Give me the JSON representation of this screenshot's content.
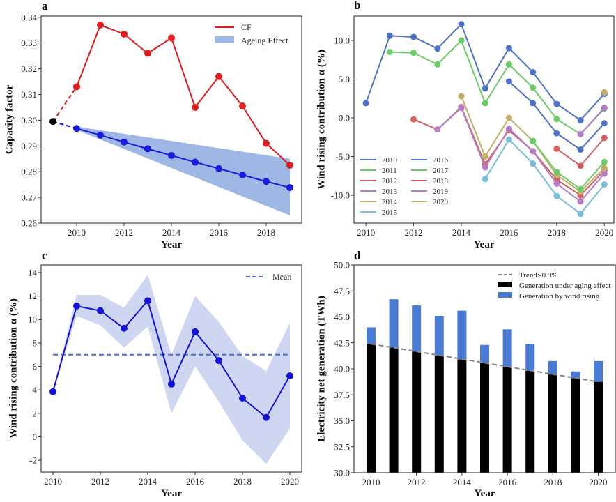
{
  "chart_data": [
    {
      "panel": "a",
      "type": "line",
      "xlabel": "Year",
      "ylabel": "Capacity factor",
      "xlim": [
        2008.5,
        2019.5
      ],
      "ylim": [
        0.26,
        0.3405
      ],
      "xticks": [
        2010,
        2012,
        2014,
        2016,
        2018
      ],
      "yticks": [
        "0.26",
        "0.27",
        "0.28",
        "0.29",
        "0.30",
        "0.31",
        "0.32",
        "0.33",
        "0.34"
      ],
      "x": [
        2009,
        2010,
        2011,
        2012,
        2013,
        2014,
        2015,
        2016,
        2017,
        2018,
        2019
      ],
      "series": [
        {
          "name": "CF",
          "color": "#e31a1c",
          "values": [
            0.2995,
            0.313,
            0.337,
            0.3335,
            0.326,
            0.332,
            0.305,
            0.317,
            0.3055,
            0.291,
            0.2825
          ]
        },
        {
          "name": "Ageing",
          "color": "#1a1ae0",
          "values": [
            0.2995,
            0.2968,
            0.2942,
            0.2915,
            0.2889,
            0.2863,
            0.2837,
            0.2812,
            0.2787,
            0.2762,
            0.2738
          ]
        }
      ],
      "band": {
        "name": "Ageing Effect",
        "color": "#7f9fdc",
        "x": [
          2010,
          2019
        ],
        "upper": [
          0.2975,
          0.285
        ],
        "lower": [
          0.2962,
          0.263
        ]
      },
      "legend": [
        "CF",
        "Ageing Effect"
      ],
      "legend_position": "top-right"
    },
    {
      "panel": "b",
      "type": "line",
      "xlabel": "Year",
      "ylabel": "Wind rising contribution α (%)",
      "xlim": [
        2009.5,
        2020.4
      ],
      "ylim": [
        -13.6,
        13.15
      ],
      "xticks": [
        2010,
        2012,
        2014,
        2016,
        2018,
        2020
      ],
      "yticks": [
        "-10.0",
        "-5.0",
        "0.0",
        "5.0",
        "10.0"
      ],
      "series": [
        {
          "name": "2010",
          "color": "#4c72c8",
          "x": [
            2010,
            2011,
            2012,
            2013,
            2014,
            2015,
            2016,
            2017,
            2018,
            2019,
            2020
          ],
          "values": [
            1.9,
            10.6,
            10.45,
            8.95,
            12.1,
            3.8,
            9.0,
            5.9,
            1.8,
            -0.3,
            3.1
          ]
        },
        {
          "name": "2011",
          "color": "#6acc65",
          "x": [
            2011,
            2012,
            2013,
            2014,
            2015,
            2016,
            2017,
            2018,
            2019,
            2020
          ],
          "values": [
            8.5,
            8.4,
            6.9,
            10.0,
            1.9,
            6.9,
            3.9,
            -0.15,
            -2.1,
            1.2
          ]
        },
        {
          "name": "2012",
          "color": "#d65f5f",
          "x": [
            2012,
            2013,
            2014,
            2015,
            2016,
            2017,
            2018,
            2019,
            2020
          ],
          "values": [
            -0.2,
            -1.5,
            1.4,
            -6.0,
            -1.6,
            -4.3,
            -8.0,
            -10.0,
            -6.8
          ]
        },
        {
          "name": "2013",
          "color": "#b47cc7",
          "x": [
            2013,
            2014,
            2015,
            2016,
            2017,
            2018,
            2019,
            2020
          ],
          "values": [
            -1.5,
            1.3,
            -6.4,
            -1.4,
            -4.3,
            -8.5,
            -10.8,
            -7.2
          ]
        },
        {
          "name": "2014",
          "color": "#c4ad66",
          "x": [
            2014,
            2015,
            2016,
            2017,
            2018,
            2019,
            2020
          ],
          "values": [
            2.8,
            -5.0,
            0.0,
            -3.0,
            -7.4,
            -9.5,
            -6.5
          ]
        },
        {
          "name": "2015",
          "color": "#77bedb",
          "x": [
            2015,
            2016,
            2017,
            2018,
            2019,
            2020
          ],
          "values": [
            -7.9,
            -2.8,
            -5.9,
            -10.1,
            -12.4,
            -8.6
          ]
        },
        {
          "name": "2016",
          "color": "#4c72c8",
          "x": [
            2016,
            2017,
            2018,
            2019,
            2020
          ],
          "values": [
            4.7,
            1.9,
            -2.0,
            -4.1,
            -0.7
          ]
        },
        {
          "name": "2017",
          "color": "#6acc65",
          "x": [
            2017,
            2018,
            2019,
            2020
          ],
          "values": [
            -3.0,
            -7.0,
            -9.2,
            -5.7
          ]
        },
        {
          "name": "2018",
          "color": "#d65f5f",
          "x": [
            2018,
            2019,
            2020
          ],
          "values": [
            -4.0,
            -6.2,
            -2.6
          ]
        },
        {
          "name": "2019",
          "color": "#b47cc7",
          "x": [
            2019,
            2020
          ],
          "values": [
            -2.1,
            1.3
          ]
        },
        {
          "name": "2020",
          "color": "#c4ad66",
          "x": [
            2020
          ],
          "values": [
            3.3
          ]
        }
      ],
      "legend_position": "lower-left"
    },
    {
      "panel": "c",
      "type": "line",
      "xlabel": "Year",
      "ylabel": "Wind rising contribution α (%)",
      "xlim": [
        2009.5,
        2020.5
      ],
      "ylim": [
        -3.0,
        14.65
      ],
      "xticks": [
        2010,
        2012,
        2014,
        2016,
        2018,
        2020
      ],
      "yticks": [
        "-2",
        "0",
        "2",
        "4",
        "6",
        "8",
        "10",
        "12",
        "14"
      ],
      "x": [
        2010,
        2011,
        2012,
        2013,
        2014,
        2015,
        2016,
        2017,
        2018,
        2019,
        2020
      ],
      "series": [
        {
          "name": "α",
          "color": "#1414d8",
          "values": [
            3.85,
            11.15,
            10.75,
            9.25,
            11.6,
            4.5,
            8.95,
            6.5,
            3.3,
            1.65,
            5.2
          ]
        }
      ],
      "band": {
        "color": "#c6cff0",
        "upper": [
          3.9,
          12.1,
          12.1,
          11.0,
          13.8,
          7.0,
          12.0,
          9.8,
          6.9,
          5.6,
          9.7
        ],
        "lower": [
          3.8,
          10.3,
          9.5,
          7.6,
          9.4,
          2.0,
          6.0,
          3.0,
          -0.3,
          -2.3,
          0.7
        ]
      },
      "mean": {
        "name": "Mean",
        "value": 7.0,
        "color": "#4a6fd0"
      },
      "legend": [
        "Mean"
      ],
      "legend_position": "top-right"
    },
    {
      "panel": "d",
      "type": "bar",
      "xlabel": "Year",
      "ylabel": "Electricity net generation (TWh)",
      "xlim": [
        2009.25,
        2020.75
      ],
      "ylim": [
        30.0,
        50.0
      ],
      "xticks": [
        2010,
        2012,
        2014,
        2016,
        2018,
        2020
      ],
      "yticks": [
        "30.0",
        "32.5",
        "35.0",
        "37.5",
        "40.0",
        "42.5",
        "45.0",
        "47.5",
        "50.0"
      ],
      "categories": [
        2010,
        2011,
        2012,
        2013,
        2014,
        2015,
        2016,
        2017,
        2018,
        2019,
        2020
      ],
      "series": [
        {
          "name": "Generation under aging effect",
          "color": "#000000",
          "values": [
            42.4,
            42.05,
            41.65,
            41.25,
            40.9,
            40.55,
            40.2,
            39.8,
            39.45,
            39.1,
            38.75
          ]
        },
        {
          "name": "Generation by wind rising",
          "color": "#4a7bd4",
          "totals": [
            44.0,
            46.7,
            46.1,
            45.1,
            45.6,
            42.3,
            43.8,
            42.4,
            40.75,
            39.75,
            40.75
          ]
        }
      ],
      "trend": {
        "name": "Trend:-0.9%",
        "color": "#888888",
        "from": [
          2010,
          42.4
        ],
        "to": [
          2020,
          38.75
        ]
      },
      "legend": [
        "Trend:-0.9%",
        "Generation under aging effect",
        "Generation by wind rising"
      ],
      "legend_position": "top-right"
    }
  ]
}
